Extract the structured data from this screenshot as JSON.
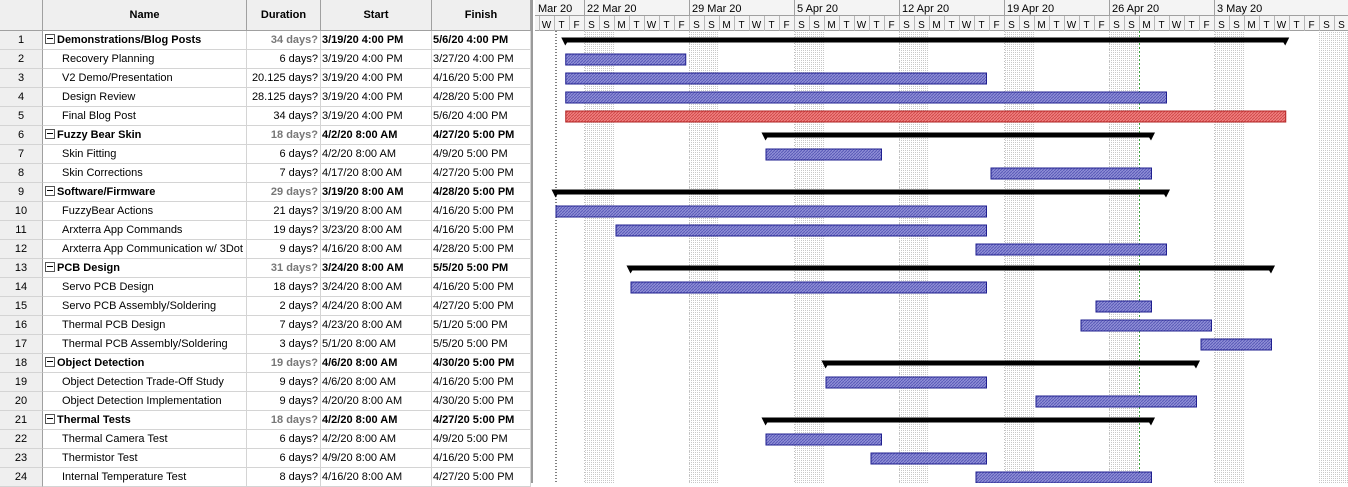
{
  "columns": {
    "id": "",
    "name": "Name",
    "duration": "Duration",
    "start": "Start",
    "finish": "Finish"
  },
  "rows": [
    {
      "id": "1",
      "name": "Demonstrations/Blog Posts",
      "duration": "34 days?",
      "start": "3/19/20 4:00 PM",
      "finish": "5/6/20 4:00 PM",
      "summary": true,
      "bar": {
        "s": 1.75,
        "e": 49.75
      }
    },
    {
      "id": "2",
      "name": "Recovery Planning",
      "duration": "6 days?",
      "start": "3/19/20 4:00 PM",
      "finish": "3/27/20 4:00 PM",
      "summary": false,
      "bar": {
        "s": 1.75,
        "e": 9.75
      }
    },
    {
      "id": "3",
      "name": "V2 Demo/Presentation",
      "duration": "20.125 days?",
      "start": "3/19/20 4:00 PM",
      "finish": "4/16/20 5:00 PM",
      "summary": false,
      "bar": {
        "s": 1.75,
        "e": 29.8
      }
    },
    {
      "id": "4",
      "name": "Design Review",
      "duration": "28.125 days?",
      "start": "3/19/20 4:00 PM",
      "finish": "4/28/20 5:00 PM",
      "summary": false,
      "bar": {
        "s": 1.75,
        "e": 41.8
      }
    },
    {
      "id": "5",
      "name": "Final Blog Post",
      "duration": "34 days?",
      "start": "3/19/20 4:00 PM",
      "finish": "5/6/20 4:00 PM",
      "summary": false,
      "critical": true,
      "bar": {
        "s": 1.75,
        "e": 49.75
      }
    },
    {
      "id": "6",
      "name": "Fuzzy Bear Skin",
      "duration": "18 days?",
      "start": "4/2/20 8:00 AM",
      "finish": "4/27/20 5:00 PM",
      "summary": true,
      "bar": {
        "s": 15.1,
        "e": 40.8
      }
    },
    {
      "id": "7",
      "name": "Skin Fitting",
      "duration": "6 days?",
      "start": "4/2/20 8:00 AM",
      "finish": "4/9/20 5:00 PM",
      "summary": false,
      "bar": {
        "s": 15.1,
        "e": 22.8
      }
    },
    {
      "id": "8",
      "name": "Skin Corrections",
      "duration": "7 days?",
      "start": "4/17/20 8:00 AM",
      "finish": "4/27/20 5:00 PM",
      "summary": false,
      "bar": {
        "s": 30.1,
        "e": 40.8
      }
    },
    {
      "id": "9",
      "name": "Software/Firmware",
      "duration": "29 days?",
      "start": "3/19/20 8:00 AM",
      "finish": "4/28/20 5:00 PM",
      "summary": true,
      "bar": {
        "s": 1.1,
        "e": 41.8
      }
    },
    {
      "id": "10",
      "name": "FuzzyBear Actions",
      "duration": "21 days?",
      "start": "3/19/20 8:00 AM",
      "finish": "4/16/20 5:00 PM",
      "summary": false,
      "bar": {
        "s": 1.1,
        "e": 29.8
      }
    },
    {
      "id": "11",
      "name": "Arxterra App Commands",
      "duration": "19 days?",
      "start": "3/23/20 8:00 AM",
      "finish": "4/16/20 5:00 PM",
      "summary": false,
      "bar": {
        "s": 5.1,
        "e": 29.8
      }
    },
    {
      "id": "12",
      "name": "Arxterra App Communication w/ 3Dot",
      "duration": "9 days?",
      "start": "4/16/20 8:00 AM",
      "finish": "4/28/20 5:00 PM",
      "summary": false,
      "bar": {
        "s": 29.1,
        "e": 41.8
      }
    },
    {
      "id": "13",
      "name": "PCB Design",
      "duration": "31 days?",
      "start": "3/24/20 8:00 AM",
      "finish": "5/5/20 5:00 PM",
      "summary": true,
      "bar": {
        "s": 6.1,
        "e": 48.8
      }
    },
    {
      "id": "14",
      "name": "Servo PCB Design",
      "duration": "18 days?",
      "start": "3/24/20 8:00 AM",
      "finish": "4/16/20 5:00 PM",
      "summary": false,
      "bar": {
        "s": 6.1,
        "e": 29.8
      }
    },
    {
      "id": "15",
      "name": "Servo PCB Assembly/Soldering",
      "duration": "2 days?",
      "start": "4/24/20 8:00 AM",
      "finish": "4/27/20 5:00 PM",
      "summary": false,
      "bar": {
        "s": 37.1,
        "e": 40.8
      }
    },
    {
      "id": "16",
      "name": "Thermal PCB Design",
      "duration": "7 days?",
      "start": "4/23/20 8:00 AM",
      "finish": "5/1/20 5:00 PM",
      "summary": false,
      "bar": {
        "s": 36.1,
        "e": 44.8
      }
    },
    {
      "id": "17",
      "name": "Thermal PCB Assembly/Soldering",
      "duration": "3 days?",
      "start": "5/1/20 8:00 AM",
      "finish": "5/5/20 5:00 PM",
      "summary": false,
      "bar": {
        "s": 44.1,
        "e": 48.8
      }
    },
    {
      "id": "18",
      "name": "Object Detection",
      "duration": "19 days?",
      "start": "4/6/20 8:00 AM",
      "finish": "4/30/20 5:00 PM",
      "summary": true,
      "bar": {
        "s": 19.1,
        "e": 43.8
      }
    },
    {
      "id": "19",
      "name": "Object Detection Trade-Off Study",
      "duration": "9 days?",
      "start": "4/6/20 8:00 AM",
      "finish": "4/16/20 5:00 PM",
      "summary": false,
      "bar": {
        "s": 19.1,
        "e": 29.8
      }
    },
    {
      "id": "20",
      "name": "Object Detection Implementation",
      "duration": "9 days?",
      "start": "4/20/20 8:00 AM",
      "finish": "4/30/20 5:00 PM",
      "summary": false,
      "bar": {
        "s": 33.1,
        "e": 43.8
      }
    },
    {
      "id": "21",
      "name": "Thermal Tests",
      "duration": "18 days?",
      "start": "4/2/20 8:00 AM",
      "finish": "4/27/20 5:00 PM",
      "summary": true,
      "bar": {
        "s": 15.1,
        "e": 40.8
      }
    },
    {
      "id": "22",
      "name": "Thermal Camera Test",
      "duration": "6 days?",
      "start": "4/2/20 8:00 AM",
      "finish": "4/9/20 5:00 PM",
      "summary": false,
      "bar": {
        "s": 15.1,
        "e": 22.8
      }
    },
    {
      "id": "23",
      "name": "Thermistor Test",
      "duration": "6 days?",
      "start": "4/9/20 8:00 AM",
      "finish": "4/16/20 5:00 PM",
      "summary": false,
      "bar": {
        "s": 22.1,
        "e": 29.8
      }
    },
    {
      "id": "24",
      "name": "Internal Temperature Test",
      "duration": "8 days?",
      "start": "4/16/20 8:00 AM",
      "finish": "4/27/20 5:00 PM",
      "summary": false,
      "bar": {
        "s": 29.1,
        "e": 40.8
      }
    }
  ],
  "timescale": {
    "weeks": [
      "Mar 20",
      "22 Mar 20",
      "29 Mar 20",
      "5 Apr 20",
      "12 Apr 20",
      "19 Apr 20",
      "26 Apr 20",
      "3 May 20"
    ],
    "day_letters": [
      "S",
      "M",
      "T",
      "W",
      "T",
      "F",
      "S"
    ],
    "status_date_day": 40
  },
  "colors": {
    "task_bar": "#8f8fd6",
    "task_border": "#1f1f8f",
    "critical_bar": "#f08080",
    "critical_border": "#b22222",
    "summary": "#000000",
    "nonworking": "#e4e4e4",
    "status_line": "#3aa33a"
  }
}
